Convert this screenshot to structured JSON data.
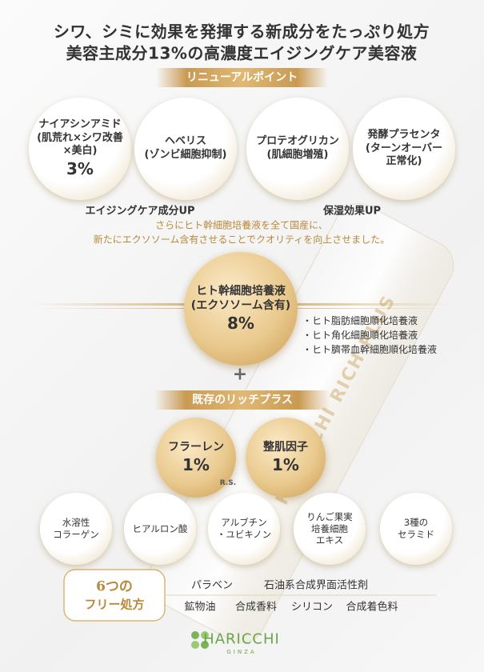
{
  "headline": [
    "シワ、シミに効果を発揮する新成分をたっぷり処方",
    "美容主成分13%の高濃度エイジングケア美容液"
  ],
  "renewal": {
    "title": "リニューアルポイント",
    "items": [
      {
        "name": "ナイアシンアミド",
        "note": [
          "(肌荒れ×シワ改善",
          "×美白)"
        ],
        "percent": "3%"
      },
      {
        "name": "ヘベリス",
        "note": [
          "(ゾンビ細胞抑制)"
        ]
      },
      {
        "name": "プロテオグリカン",
        "note": [
          "(肌細胞増殖)"
        ]
      },
      {
        "name": "発酵プラセンタ",
        "note": [
          "(ターンオーバー",
          "正常化)"
        ]
      }
    ],
    "labels": [
      "エイジングケア成分UP",
      "保湿効果UP"
    ],
    "note": [
      "さらにヒト幹細胞培養液を全て国産に、",
      "新たにエクソソーム含有させることでクオリティを向上させました。"
    ]
  },
  "stem_cell": {
    "name": "ヒト幹細胞培養液",
    "note": "(エクソソーム含有)",
    "percent": "8%",
    "list": [
      "・ヒト脂肪細胞順化培養液",
      "・ヒト角化細胞順化培養液",
      "・ヒト臍帯血幹細胞順化培養液"
    ]
  },
  "plus": "+",
  "rich_plus": {
    "title": "既存のリッチプラス",
    "main": [
      {
        "name": "フラーレン",
        "percent": "1%"
      },
      {
        "name": "整肌因子",
        "percent": "1%"
      }
    ],
    "mark": "R.S.",
    "others": [
      [
        "水溶性",
        "コラーゲン"
      ],
      [
        "ヒアルロン酸"
      ],
      [
        "アルブチン",
        "・ユビキノン"
      ],
      [
        "りんご果実",
        "培養細胞",
        "エキス"
      ],
      [
        "3種の",
        "セラミド"
      ]
    ]
  },
  "free": {
    "count": "6つの",
    "title": "フリー処方",
    "rows": [
      [
        "パラベン",
        "石油系合成界面活性剤"
      ],
      [
        "鉱物油",
        "合成香料",
        "シリコン",
        "合成着色料"
      ]
    ]
  },
  "bottle": {
    "label": "HARICCHI RICH PLUS"
  },
  "logo": {
    "name": "HARICCHI",
    "sub": "GINZA"
  }
}
